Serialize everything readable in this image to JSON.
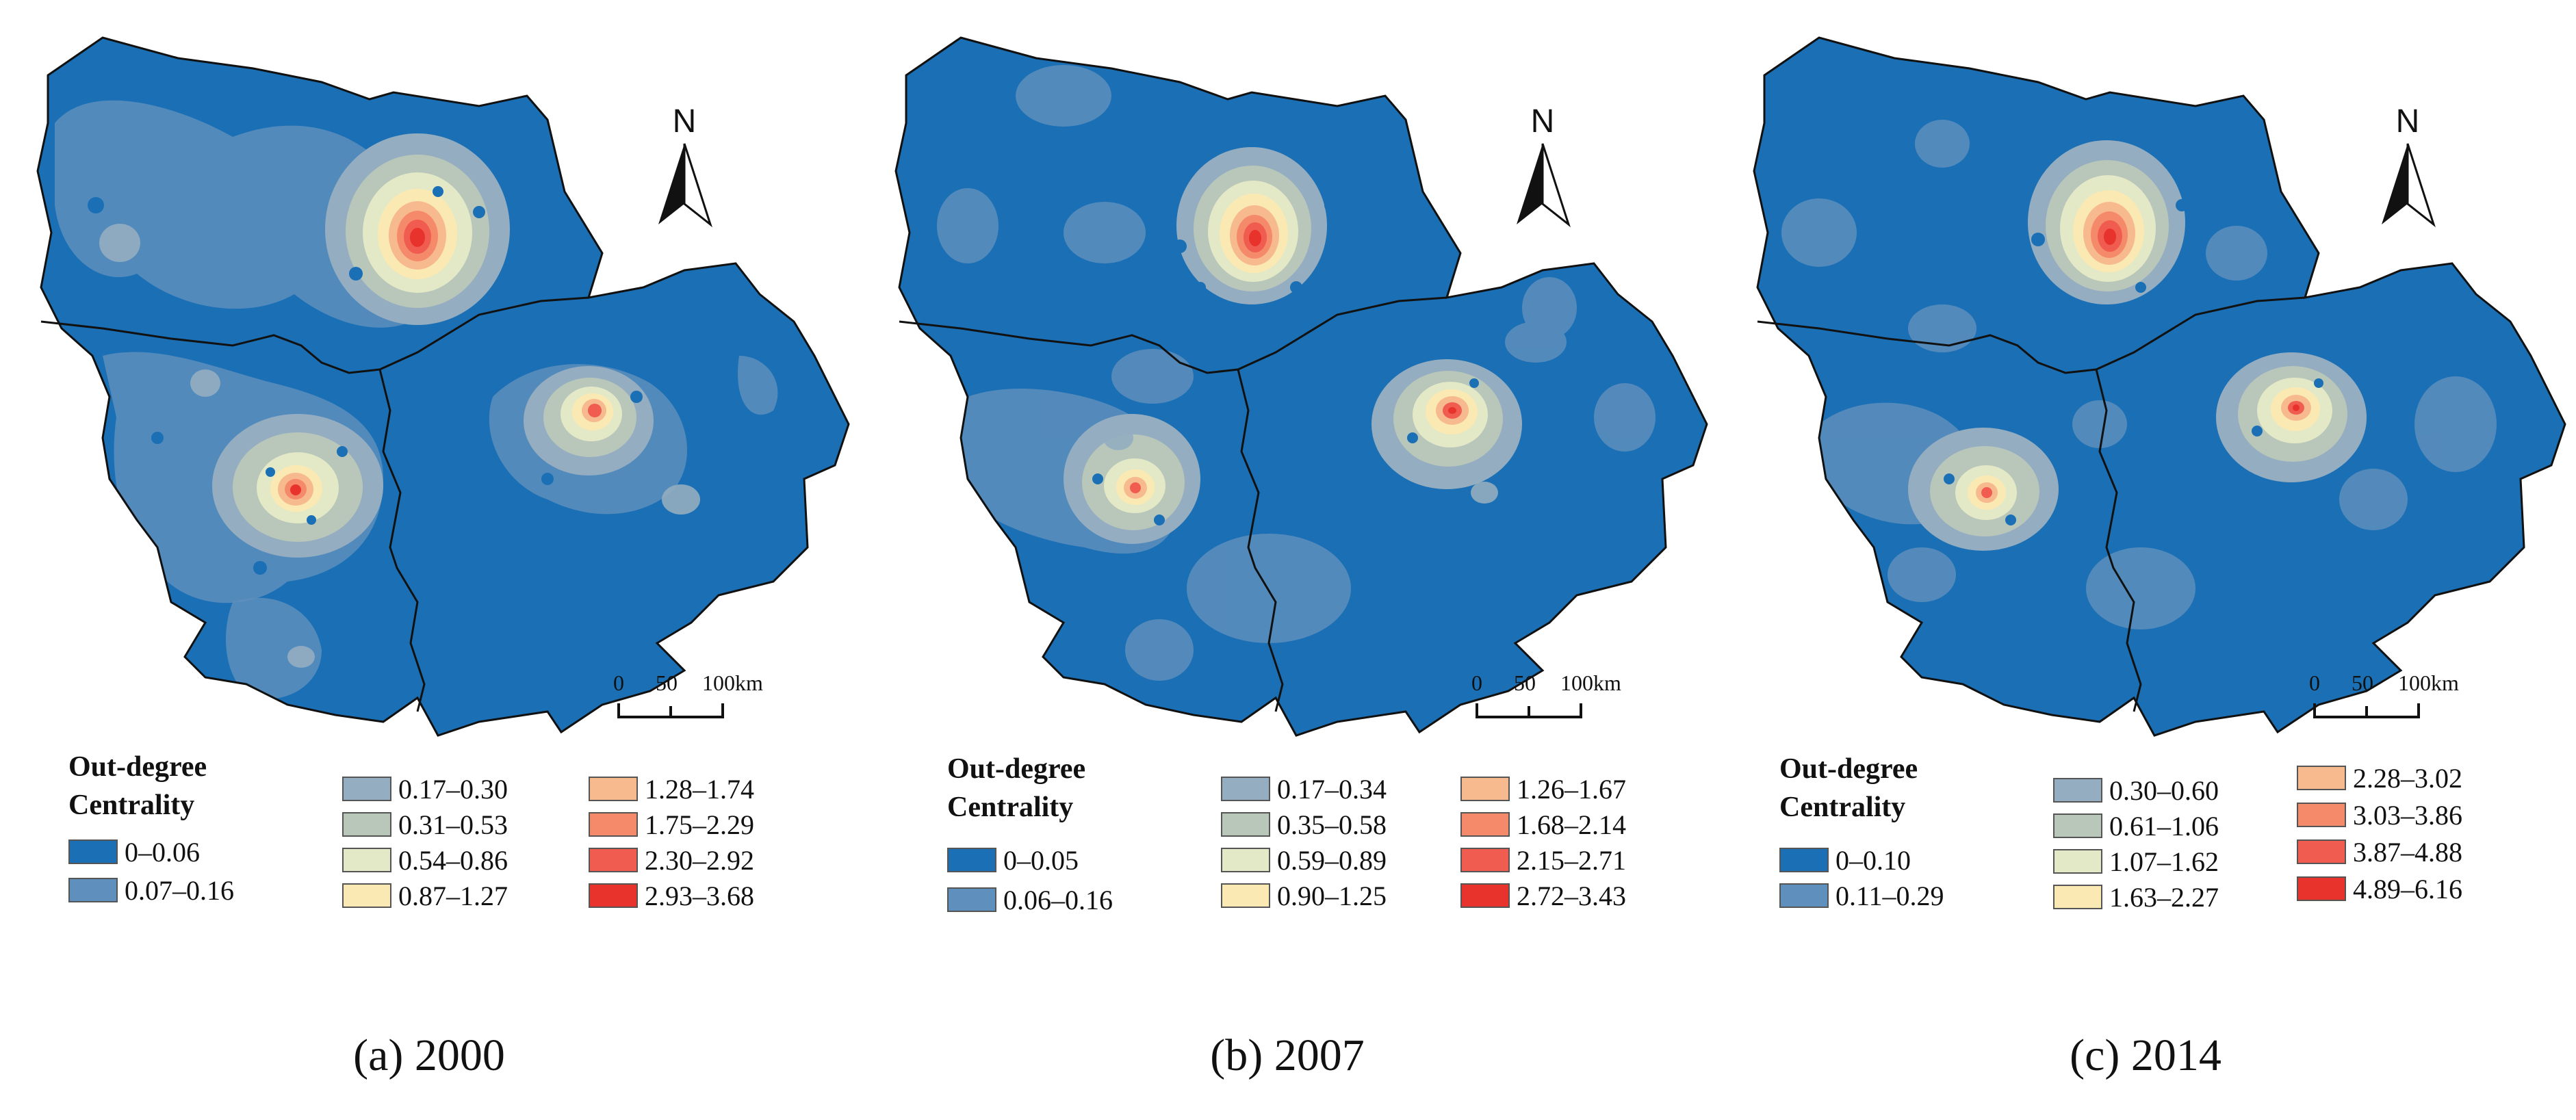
{
  "legend_title_line1": "Out-degree",
  "legend_title_line2": "Centrality",
  "north_label": "N",
  "scale_labels": {
    "zero": "0",
    "mid": "50",
    "end": "100km"
  },
  "color_classes": [
    "#1a6fb5",
    "#5e8fbd",
    "#94adc0",
    "#b9c7bb",
    "#e3e9c6",
    "#fbe9b3",
    "#f7b98e",
    "#f58a6b",
    "#f05c4f",
    "#e8322c"
  ],
  "panels": [
    {
      "caption": "(a) 2000",
      "legend": [
        "0–0.06",
        "0.07–0.16",
        "0.17–0.30",
        "0.31–0.53",
        "0.54–0.86",
        "0.87–1.27",
        "1.28–1.74",
        "1.75–2.29",
        "2.30–2.92",
        "2.93–3.68"
      ]
    },
    {
      "caption": "(b) 2007",
      "legend": [
        "0–0.05",
        "0.06–0.16",
        "0.17–0.34",
        "0.35–0.58",
        "0.59–0.89",
        "0.90–1.25",
        "1.26–1.67",
        "1.68–2.14",
        "2.15–2.71",
        "2.72–3.43"
      ]
    },
    {
      "caption": "(c) 2014",
      "legend": [
        "0–0.10",
        "0.11–0.29",
        "0.30–0.60",
        "0.61–1.06",
        "1.07–1.62",
        "1.63–2.27",
        "2.28–3.02",
        "3.03–3.86",
        "3.87–4.88",
        "4.89–6.16"
      ]
    }
  ]
}
